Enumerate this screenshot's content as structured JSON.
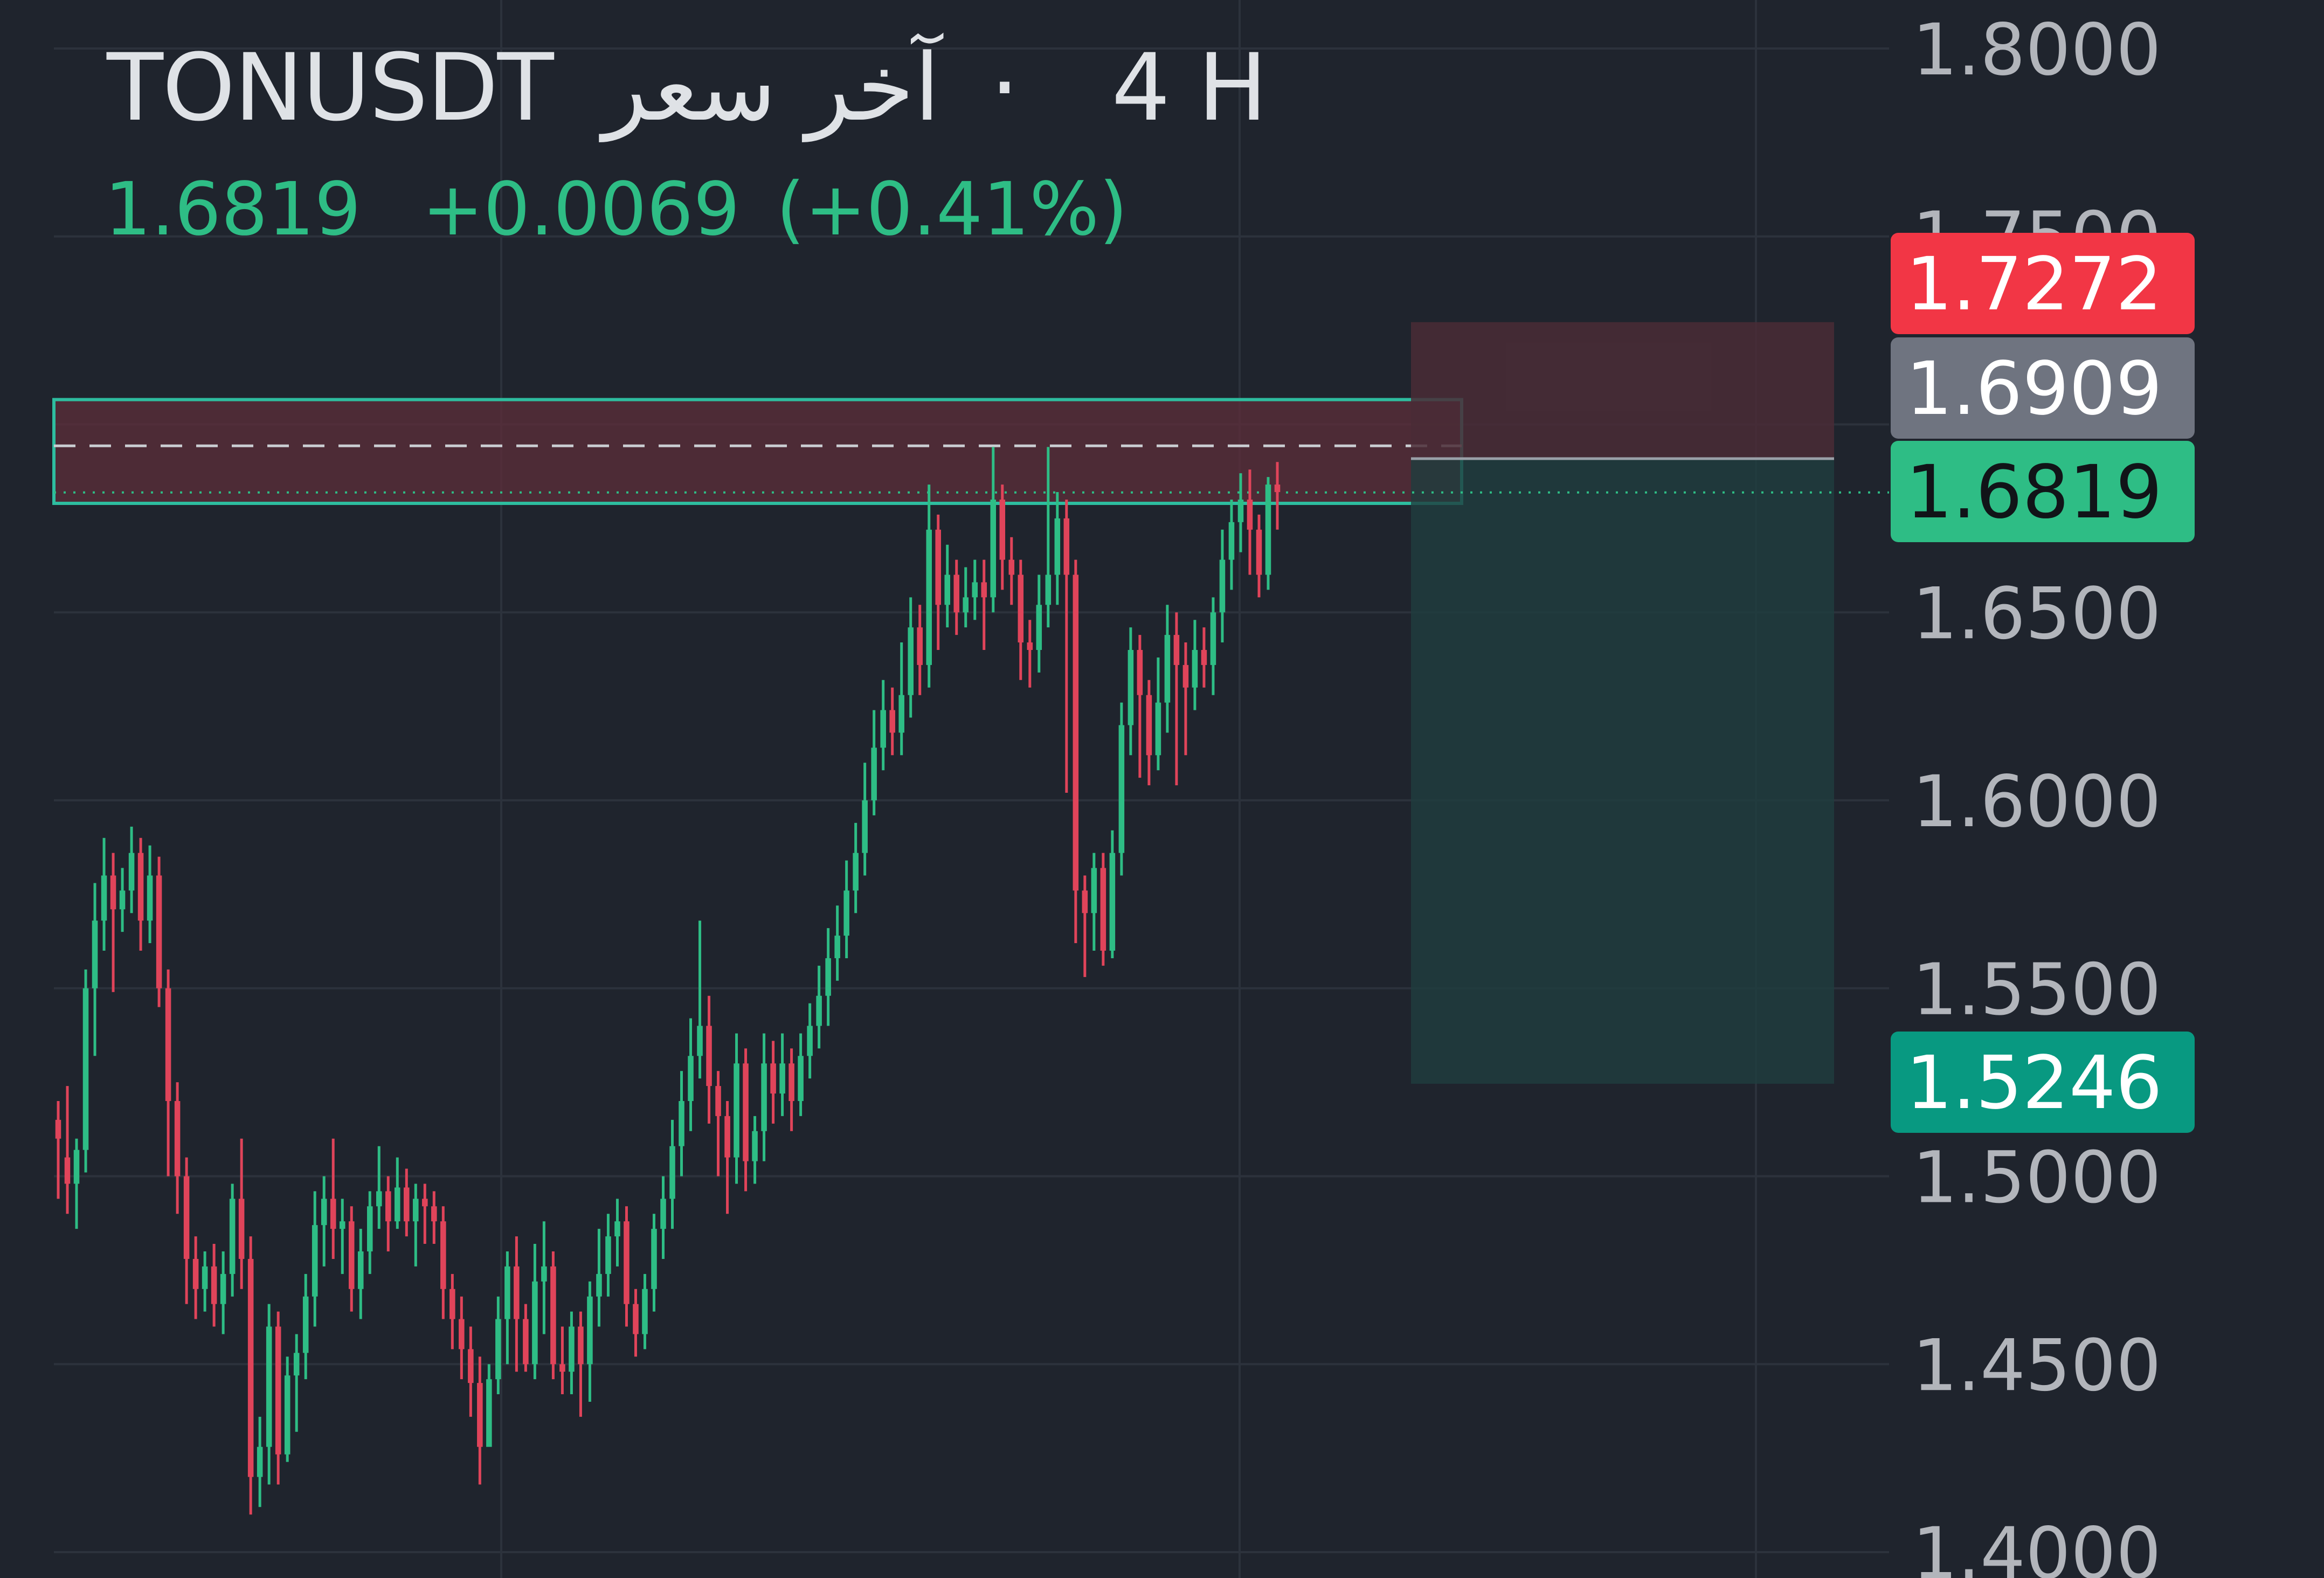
{
  "header": {
    "symbol": "TONUSDT",
    "price_type": "آخر سعر",
    "separator": "·",
    "interval": "4 H",
    "last_price": "1.6819",
    "change": "+0.0069",
    "change_pct": "(+0.41%)"
  },
  "colors": {
    "background": "#1f242d",
    "up": "#2ebd85",
    "down": "#e0445a",
    "grid": "#2c323c",
    "axis_text": "#b2b5bb",
    "stop_label": "#f23645",
    "entry_label": "#6f7480",
    "target_label": "#089981",
    "zone_border": "#2ebd9f",
    "zone_fill": "#5e2d3a",
    "risk_fill": "#4a2c36",
    "reward_fill": "#1f3d3e"
  },
  "chart_data": {
    "type": "candlestick",
    "symbol": "TONUSDT",
    "timeframe": "4 H",
    "ylim": [
      1.4,
      1.8
    ],
    "y_ticks": [
      "1.8000",
      "1.7500",
      "1.6500",
      "1.6000",
      "1.5500",
      "1.5000",
      "1.4500",
      "1.4000"
    ],
    "grid": true,
    "price_labels": [
      {
        "role": "stop",
        "value": "1.7272"
      },
      {
        "role": "entry",
        "value": "1.6909"
      },
      {
        "role": "last",
        "value": "1.6819"
      },
      {
        "role": "target",
        "value": "1.5246"
      }
    ],
    "resistance_zone": {
      "top": 1.7066,
      "bottom": 1.679,
      "dashed_line": 1.6943
    },
    "position": {
      "side": "short",
      "entry": 1.6909,
      "stop": 1.7272,
      "target": 1.5246
    },
    "candles": [
      [
        1.515,
        1.51,
        1.52,
        1.494
      ],
      [
        1.505,
        1.498,
        1.524,
        1.49
      ],
      [
        1.498,
        1.507,
        1.51,
        1.486
      ],
      [
        1.507,
        1.55,
        1.555,
        1.501
      ],
      [
        1.55,
        1.568,
        1.578,
        1.532
      ],
      [
        1.568,
        1.58,
        1.59,
        1.56
      ],
      [
        1.58,
        1.571,
        1.586,
        1.549
      ],
      [
        1.571,
        1.576,
        1.582,
        1.565
      ],
      [
        1.576,
        1.586,
        1.593,
        1.57
      ],
      [
        1.586,
        1.568,
        1.59,
        1.56
      ],
      [
        1.568,
        1.58,
        1.588,
        1.562
      ],
      [
        1.58,
        1.55,
        1.585,
        1.545
      ],
      [
        1.55,
        1.52,
        1.555,
        1.5
      ],
      [
        1.52,
        1.5,
        1.525,
        1.49
      ],
      [
        1.5,
        1.478,
        1.505,
        1.466
      ],
      [
        1.478,
        1.47,
        1.484,
        1.462
      ],
      [
        1.47,
        1.476,
        1.48,
        1.464
      ],
      [
        1.476,
        1.466,
        1.482,
        1.46
      ],
      [
        1.466,
        1.474,
        1.48,
        1.458
      ],
      [
        1.474,
        1.494,
        1.498,
        1.468
      ],
      [
        1.494,
        1.478,
        1.51,
        1.47
      ],
      [
        1.478,
        1.42,
        1.484,
        1.41
      ],
      [
        1.42,
        1.428,
        1.436,
        1.412
      ],
      [
        1.428,
        1.46,
        1.466,
        1.418
      ],
      [
        1.46,
        1.426,
        1.464,
        1.418
      ],
      [
        1.426,
        1.447,
        1.452,
        1.424
      ],
      [
        1.447,
        1.453,
        1.458,
        1.432
      ],
      [
        1.453,
        1.468,
        1.474,
        1.446
      ],
      [
        1.468,
        1.487,
        1.496,
        1.46
      ],
      [
        1.487,
        1.494,
        1.5,
        1.476
      ],
      [
        1.494,
        1.486,
        1.51,
        1.478
      ],
      [
        1.486,
        1.488,
        1.494,
        1.474
      ],
      [
        1.488,
        1.47,
        1.492,
        1.464
      ],
      [
        1.47,
        1.48,
        1.486,
        1.462
      ],
      [
        1.48,
        1.492,
        1.496,
        1.474
      ],
      [
        1.492,
        1.496,
        1.508,
        1.486
      ],
      [
        1.496,
        1.488,
        1.5,
        1.48
      ],
      [
        1.488,
        1.497,
        1.505,
        1.486
      ],
      [
        1.497,
        1.488,
        1.502,
        1.484
      ],
      [
        1.488,
        1.494,
        1.498,
        1.476
      ],
      [
        1.494,
        1.492,
        1.498,
        1.482
      ],
      [
        1.492,
        1.488,
        1.496,
        1.482
      ],
      [
        1.488,
        1.47,
        1.492,
        1.462
      ],
      [
        1.47,
        1.462,
        1.474,
        1.454
      ],
      [
        1.462,
        1.454,
        1.468,
        1.446
      ],
      [
        1.454,
        1.445,
        1.46,
        1.436
      ],
      [
        1.445,
        1.428,
        1.452,
        1.418
      ],
      [
        1.428,
        1.446,
        1.45,
        1.436
      ],
      [
        1.446,
        1.462,
        1.468,
        1.442
      ],
      [
        1.462,
        1.476,
        1.48,
        1.45
      ],
      [
        1.476,
        1.462,
        1.484,
        1.448
      ],
      [
        1.462,
        1.45,
        1.466,
        1.448
      ],
      [
        1.45,
        1.472,
        1.482,
        1.446
      ],
      [
        1.472,
        1.476,
        1.488,
        1.458
      ],
      [
        1.476,
        1.45,
        1.48,
        1.446
      ],
      [
        1.45,
        1.448,
        1.46,
        1.442
      ],
      [
        1.448,
        1.46,
        1.464,
        1.442
      ],
      [
        1.46,
        1.45,
        1.464,
        1.436
      ],
      [
        1.45,
        1.468,
        1.472,
        1.44
      ],
      [
        1.468,
        1.474,
        1.486,
        1.46
      ],
      [
        1.474,
        1.484,
        1.49,
        1.468
      ],
      [
        1.484,
        1.488,
        1.494,
        1.476
      ],
      [
        1.488,
        1.466,
        1.492,
        1.46
      ],
      [
        1.466,
        1.458,
        1.47,
        1.452
      ],
      [
        1.458,
        1.47,
        1.474,
        1.454
      ],
      [
        1.47,
        1.486,
        1.49,
        1.464
      ],
      [
        1.486,
        1.494,
        1.5,
        1.478
      ],
      [
        1.494,
        1.508,
        1.515,
        1.486
      ],
      [
        1.508,
        1.52,
        1.528,
        1.5
      ],
      [
        1.52,
        1.532,
        1.542,
        1.512
      ],
      [
        1.532,
        1.54,
        1.568,
        1.526
      ],
      [
        1.54,
        1.524,
        1.548,
        1.514
      ],
      [
        1.524,
        1.516,
        1.528,
        1.5
      ],
      [
        1.516,
        1.505,
        1.52,
        1.49
      ],
      [
        1.505,
        1.53,
        1.538,
        1.498
      ],
      [
        1.53,
        1.504,
        1.534,
        1.496
      ],
      [
        1.504,
        1.512,
        1.516,
        1.498
      ],
      [
        1.512,
        1.53,
        1.538,
        1.504
      ],
      [
        1.53,
        1.522,
        1.536,
        1.514
      ],
      [
        1.522,
        1.53,
        1.538,
        1.516
      ],
      [
        1.53,
        1.52,
        1.534,
        1.512
      ],
      [
        1.52,
        1.532,
        1.538,
        1.516
      ],
      [
        1.532,
        1.54,
        1.546,
        1.526
      ],
      [
        1.54,
        1.548,
        1.556,
        1.534
      ],
      [
        1.548,
        1.558,
        1.566,
        1.54
      ],
      [
        1.558,
        1.564,
        1.572,
        1.552
      ],
      [
        1.564,
        1.576,
        1.584,
        1.558
      ],
      [
        1.576,
        1.586,
        1.594,
        1.57
      ],
      [
        1.586,
        1.6,
        1.61,
        1.58
      ],
      [
        1.6,
        1.614,
        1.624,
        1.596
      ],
      [
        1.614,
        1.624,
        1.632,
        1.608
      ],
      [
        1.624,
        1.618,
        1.63,
        1.612
      ],
      [
        1.618,
        1.628,
        1.642,
        1.612
      ],
      [
        1.628,
        1.646,
        1.654,
        1.622
      ],
      [
        1.646,
        1.636,
        1.652,
        1.628
      ],
      [
        1.636,
        1.672,
        1.684,
        1.63
      ],
      [
        1.672,
        1.652,
        1.676,
        1.64
      ],
      [
        1.652,
        1.66,
        1.668,
        1.646
      ],
      [
        1.66,
        1.65,
        1.664,
        1.644
      ],
      [
        1.65,
        1.654,
        1.662,
        1.646
      ],
      [
        1.654,
        1.658,
        1.664,
        1.648
      ],
      [
        1.658,
        1.654,
        1.664,
        1.64
      ],
      [
        1.654,
        1.68,
        1.694,
        1.65
      ],
      [
        1.68,
        1.664,
        1.684,
        1.656
      ],
      [
        1.664,
        1.66,
        1.67,
        1.652
      ],
      [
        1.66,
        1.642,
        1.664,
        1.632
      ],
      [
        1.642,
        1.64,
        1.648,
        1.63
      ],
      [
        1.64,
        1.652,
        1.66,
        1.634
      ],
      [
        1.652,
        1.66,
        1.694,
        1.646
      ],
      [
        1.66,
        1.675,
        1.682,
        1.652
      ],
      [
        1.675,
        1.66,
        1.68,
        1.602
      ],
      [
        1.66,
        1.576,
        1.664,
        1.562
      ],
      [
        1.576,
        1.57,
        1.58,
        1.553
      ],
      [
        1.57,
        1.582,
        1.586,
        1.56
      ],
      [
        1.582,
        1.56,
        1.586,
        1.556
      ],
      [
        1.56,
        1.586,
        1.592,
        1.558
      ],
      [
        1.586,
        1.62,
        1.626,
        1.58
      ],
      [
        1.62,
        1.64,
        1.646,
        1.612
      ],
      [
        1.64,
        1.628,
        1.644,
        1.606
      ],
      [
        1.628,
        1.612,
        1.632,
        1.604
      ],
      [
        1.612,
        1.626,
        1.638,
        1.608
      ],
      [
        1.626,
        1.644,
        1.652,
        1.618
      ],
      [
        1.644,
        1.636,
        1.65,
        1.604
      ],
      [
        1.636,
        1.63,
        1.642,
        1.612
      ],
      [
        1.63,
        1.64,
        1.648,
        1.624
      ],
      [
        1.64,
        1.636,
        1.646,
        1.63
      ],
      [
        1.636,
        1.65,
        1.654,
        1.628
      ],
      [
        1.65,
        1.664,
        1.672,
        1.642
      ],
      [
        1.664,
        1.674,
        1.68,
        1.656
      ],
      [
        1.674,
        1.68,
        1.687,
        1.666
      ],
      [
        1.68,
        1.672,
        1.688,
        1.66
      ],
      [
        1.672,
        1.66,
        1.676,
        1.654
      ],
      [
        1.66,
        1.684,
        1.686,
        1.656
      ],
      [
        1.684,
        1.682,
        1.69,
        1.672
      ]
    ]
  }
}
